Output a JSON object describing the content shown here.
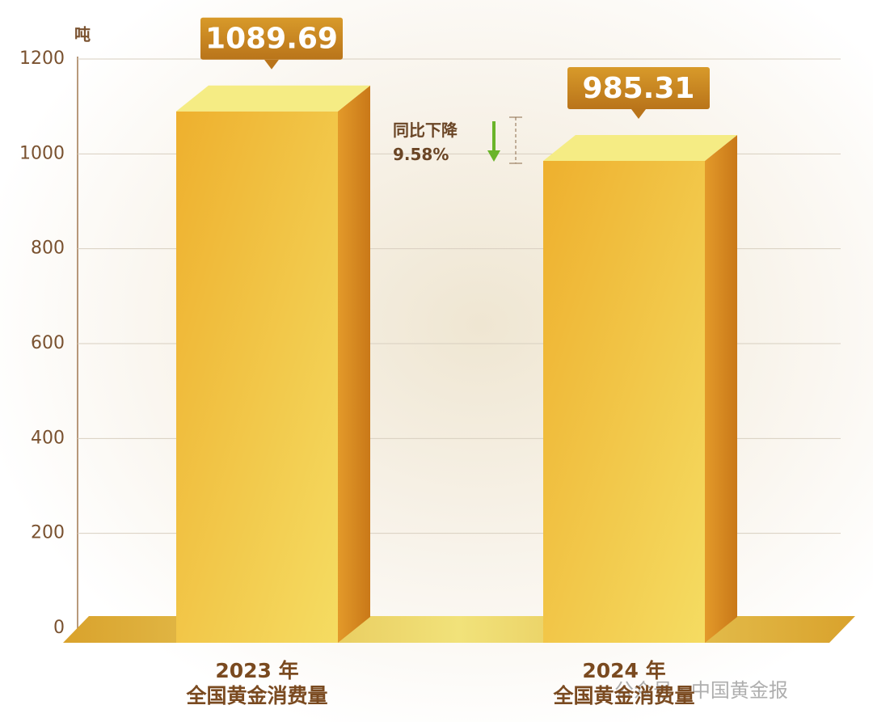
{
  "chart_data": {
    "type": "bar3d",
    "y_unit": "吨",
    "categories": [
      "2023 年\n全国黄金消费量",
      "2024 年\n全国黄金消费量"
    ],
    "values": [
      1089.69,
      985.31
    ],
    "ylim": [
      0,
      1200
    ],
    "yticks": [
      0,
      200,
      400,
      600,
      800,
      1000,
      1200
    ],
    "grid": true,
    "color": "#f0b83a",
    "annotation": "同比下降\n9.58%",
    "watermark": "公众号 · 中国黄金报"
  }
}
